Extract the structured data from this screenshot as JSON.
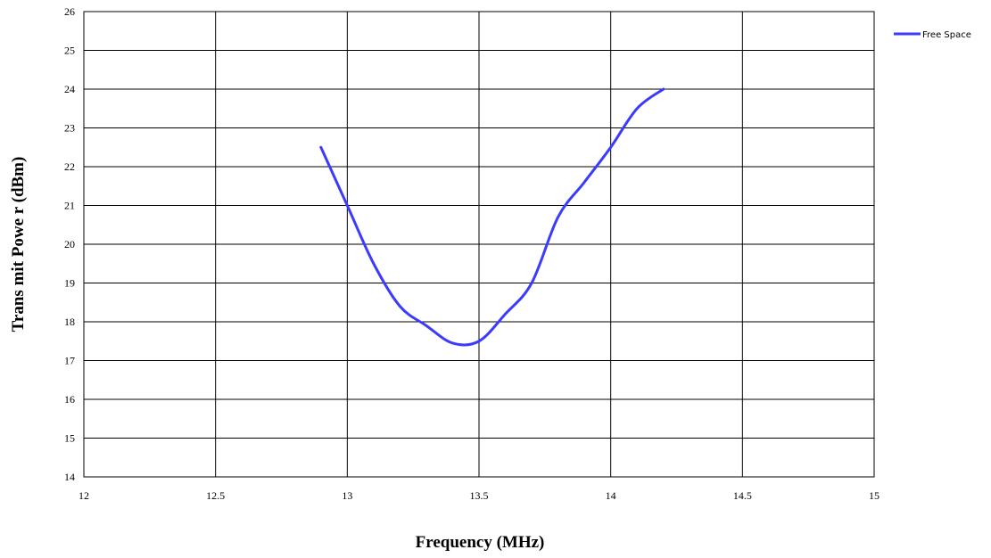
{
  "chart_data": {
    "type": "line",
    "xlabel": "Frequency  (MHz)",
    "ylabel": "Trans mit Powe r (dBm)",
    "xlim": [
      12,
      15
    ],
    "ylim": [
      14,
      26
    ],
    "x_ticks": [
      "12",
      "12.5",
      "13",
      "13.5",
      "14",
      "14.5",
      "15"
    ],
    "y_ticks": [
      "14",
      "15",
      "16",
      "17",
      "18",
      "19",
      "20",
      "21",
      "22",
      "23",
      "24",
      "25",
      "26"
    ],
    "grid": true,
    "legend_position": "top-right",
    "series": [
      {
        "name": "Free Space",
        "color": "#3B3BFF",
        "x": [
          12.9,
          13.0,
          13.1,
          13.2,
          13.3,
          13.4,
          13.5,
          13.6,
          13.7,
          13.8,
          13.9,
          14.0,
          14.1,
          14.2
        ],
        "y": [
          22.5,
          21.0,
          19.5,
          18.4,
          17.9,
          17.45,
          17.5,
          18.2,
          19.0,
          20.7,
          21.6,
          22.5,
          23.5,
          24.0
        ]
      }
    ]
  }
}
